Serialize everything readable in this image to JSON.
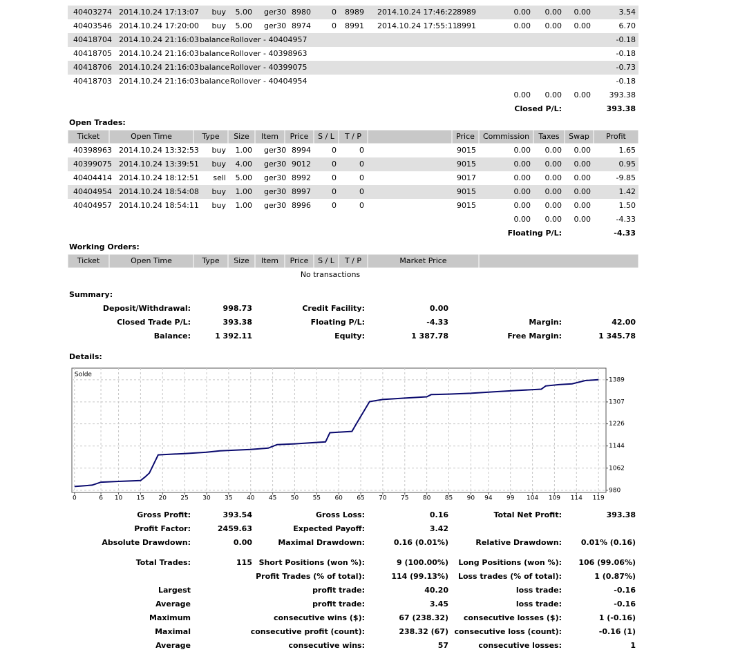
{
  "closed_trades": {
    "rows": [
      [
        "40403274",
        "2014.10.24 17:13:07",
        "buy",
        "5.00",
        "ger30",
        "8980",
        "0",
        "8989",
        "2014.10.24 17:46:22",
        "8989",
        "0.00",
        "0.00",
        "0.00",
        "3.54"
      ],
      [
        "40403546",
        "2014.10.24 17:20:00",
        "buy",
        "5.00",
        "ger30",
        "8974",
        "0",
        "8991",
        "2014.10.24 17:55:11",
        "8991",
        "0.00",
        "0.00",
        "0.00",
        "6.70"
      ],
      [
        "40418704",
        "2014.10.24 21:16:03",
        "balance",
        "Rollover - 40404957",
        "-0.18"
      ],
      [
        "40418705",
        "2014.10.24 21:16:03",
        "balance",
        "Rollover - 40398963",
        "-0.18"
      ],
      [
        "40418706",
        "2014.10.24 21:16:03",
        "balance",
        "Rollover - 40399075",
        "-0.73"
      ],
      [
        "40418703",
        "2014.10.24 21:16:03",
        "balance",
        "Rollover - 40404954",
        "-0.18"
      ]
    ],
    "totals": [
      "0.00",
      "0.00",
      "0.00",
      "393.38"
    ],
    "total_label": "Closed P/L:",
    "total_value": "393.38"
  },
  "open_trades": {
    "title": "Open Trades:",
    "header": [
      "Ticket",
      "Open Time",
      "Type",
      "Size",
      "Item",
      "Price",
      "S / L",
      "T / P",
      "Price",
      "Commission",
      "Taxes",
      "Swap",
      "Profit"
    ],
    "rows": [
      [
        "40398963",
        "2014.10.24 13:32:53",
        "buy",
        "1.00",
        "ger30",
        "8994",
        "0",
        "0",
        "9015",
        "0.00",
        "0.00",
        "0.00",
        "1.65"
      ],
      [
        "40399075",
        "2014.10.24 13:39:51",
        "buy",
        "4.00",
        "ger30",
        "9012",
        "0",
        "0",
        "9015",
        "0.00",
        "0.00",
        "0.00",
        "0.95"
      ],
      [
        "40404414",
        "2014.10.24 18:12:51",
        "sell",
        "5.00",
        "ger30",
        "8992",
        "0",
        "0",
        "9017",
        "0.00",
        "0.00",
        "0.00",
        "-9.85"
      ],
      [
        "40404954",
        "2014.10.24 18:54:08",
        "buy",
        "1.00",
        "ger30",
        "8997",
        "0",
        "0",
        "9015",
        "0.00",
        "0.00",
        "0.00",
        "1.42"
      ],
      [
        "40404957",
        "2014.10.24 18:54:11",
        "buy",
        "1.00",
        "ger30",
        "8996",
        "0",
        "0",
        "9015",
        "0.00",
        "0.00",
        "0.00",
        "1.50"
      ]
    ],
    "totals": [
      "0.00",
      "0.00",
      "0.00",
      "-4.33"
    ],
    "total_label": "Floating P/L:",
    "total_value": "-4.33"
  },
  "working_orders": {
    "title": "Working Orders:",
    "header": [
      "Ticket",
      "Open Time",
      "Type",
      "Size",
      "Item",
      "Price",
      "S / L",
      "T / P",
      "Market Price"
    ],
    "empty": "No transactions"
  },
  "summary": {
    "title": "Summary:",
    "rows": [
      {
        "left": [
          "Deposit/Withdrawal:",
          "998.73"
        ],
        "mid": [
          "Credit Facility:",
          "0.00"
        ]
      },
      {
        "left": [
          "Closed Trade P/L:",
          "393.38"
        ],
        "mid": [
          "Floating P/L:",
          "-4.33"
        ],
        "right": [
          "Margin:",
          "42.00"
        ]
      },
      {
        "left": [
          "Balance:",
          "1 392.11"
        ],
        "mid": [
          "Equity:",
          "1 387.78"
        ],
        "right": [
          "Free Margin:",
          "1 345.78"
        ]
      }
    ]
  },
  "details_title": "Details:",
  "chart_data": {
    "type": "line",
    "title": "Solde",
    "x": [
      0,
      4,
      6,
      10,
      15,
      16,
      17,
      19,
      25,
      30,
      33,
      40,
      44,
      46,
      50,
      57,
      58,
      63,
      64,
      67,
      70,
      75,
      80,
      81,
      85,
      90,
      95,
      100,
      106,
      107,
      110,
      113,
      116,
      119
    ],
    "values": [
      994,
      999,
      1010,
      1013,
      1016,
      1029,
      1044,
      1111,
      1116,
      1121,
      1126,
      1131,
      1136,
      1149,
      1152,
      1159,
      1193,
      1198,
      1226,
      1308,
      1316,
      1321,
      1326,
      1334,
      1336,
      1339,
      1344,
      1349,
      1354,
      1366,
      1371,
      1374,
      1386,
      1389
    ],
    "color": "#0a0a6e",
    "xlim": [
      -0.6,
      120.7
    ],
    "ylim": [
      972,
      1432
    ],
    "xticks": [
      0,
      6,
      10,
      15,
      20,
      25,
      30,
      35,
      40,
      45,
      50,
      55,
      60,
      65,
      70,
      75,
      80,
      85,
      90,
      94,
      99,
      104,
      109,
      114,
      119
    ],
    "yticks": [
      980,
      1062,
      1144,
      1226,
      1307,
      1389
    ],
    "grid": true
  },
  "stats": [
    {
      "left": [
        "Gross Profit:",
        "393.54"
      ],
      "mid": [
        "Gross Loss:",
        "0.16"
      ],
      "right": [
        "Total Net Profit:",
        "393.38"
      ]
    },
    {
      "left": [
        "Profit Factor:",
        "2459.63"
      ],
      "mid": [
        "Expected Payoff:",
        "3.42"
      ]
    },
    {
      "left": [
        "Absolute Drawdown:",
        "0.00"
      ],
      "mid": [
        "Maximal Drawdown:",
        "0.16 (0.01%)"
      ],
      "right": [
        "Relative Drawdown:",
        "0.01% (0.16)"
      ]
    },
    {
      "left": [
        "Total Trades:",
        "115"
      ],
      "mid": [
        "Short Positions (won %):",
        "9 (100.00%)"
      ],
      "right": [
        "Long Positions (won %):",
        "106 (99.06%)"
      ]
    },
    {
      "mid": [
        "Profit Trades (% of total):",
        "114 (99.13%)"
      ],
      "right": [
        "Loss trades (% of total):",
        "1 (0.87%)"
      ]
    },
    {
      "left": [
        "Largest"
      ],
      "mid": [
        "profit trade:",
        "40.20"
      ],
      "right": [
        "loss trade:",
        "-0.16"
      ]
    },
    {
      "left": [
        "Average"
      ],
      "mid": [
        "profit trade:",
        "3.45"
      ],
      "right": [
        "loss trade:",
        "-0.16"
      ]
    },
    {
      "left": [
        "Maximum"
      ],
      "mid": [
        "consecutive wins ($):",
        "67 (238.32)"
      ],
      "right": [
        "consecutive losses ($):",
        "1 (-0.16)"
      ]
    },
    {
      "left": [
        "Maximal"
      ],
      "mid": [
        "consecutive profit (count):",
        "238.32 (67)"
      ],
      "right": [
        "consecutive loss (count):",
        "-0.16 (1)"
      ]
    },
    {
      "left": [
        "Average"
      ],
      "mid": [
        "consecutive wins:",
        "57"
      ],
      "right": [
        "consecutive losses:",
        "1"
      ]
    }
  ]
}
